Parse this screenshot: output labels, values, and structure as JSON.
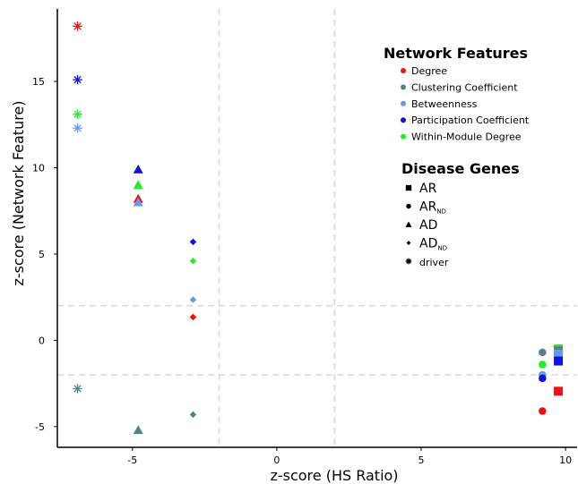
{
  "chart_data": {
    "type": "scatter",
    "xlabel": "z-score (HS Ratio)",
    "ylabel": "z-score (Network Feature)",
    "xlim": [
      -7.6,
      10.4
    ],
    "ylim": [
      -6.2,
      19.2
    ],
    "x_ticks": [
      -5,
      0,
      5,
      10
    ],
    "y_ticks": [
      -5,
      0,
      5,
      10,
      15
    ],
    "reference_lines": {
      "vertical": [
        -2,
        2
      ],
      "horizontal": [
        -2,
        2
      ],
      "style": "dashed light gray"
    },
    "grid": false,
    "legend_placement": "top-right",
    "feature_legend": {
      "title": "Network Features",
      "items": [
        {
          "key": "degree",
          "label": "Degree",
          "color": "#ee1111"
        },
        {
          "key": "clustering",
          "label": "Clustering Coefficient",
          "color": "#5b7f86"
        },
        {
          "key": "betweenness",
          "label": "Betweenness",
          "color": "#6699ee"
        },
        {
          "key": "participation",
          "label": "Participation Coefficient",
          "color": "#1111dd"
        },
        {
          "key": "within",
          "label": "Within-Module Degree",
          "color": "#22ee22"
        }
      ]
    },
    "gene_legend": {
      "title": "Disease Genes",
      "items": [
        {
          "key": "AR",
          "label": "AR",
          "sub": "",
          "shape": "square"
        },
        {
          "key": "AR_ND",
          "label": "AR",
          "sub": "ND",
          "shape": "circle"
        },
        {
          "key": "AD",
          "label": "AD",
          "sub": "",
          "shape": "triangle"
        },
        {
          "key": "AD_ND",
          "label": "AD",
          "sub": "ND",
          "shape": "diamond"
        },
        {
          "key": "driver",
          "label": "driver",
          "sub": "",
          "shape": "asterisk"
        }
      ]
    },
    "series": [
      {
        "gene": "driver",
        "feature": "degree",
        "x": -6.9,
        "y": 18.2
      },
      {
        "gene": "driver",
        "feature": "participation",
        "x": -6.9,
        "y": 15.1
      },
      {
        "gene": "driver",
        "feature": "within",
        "x": -6.9,
        "y": 13.1
      },
      {
        "gene": "driver",
        "feature": "betweenness",
        "x": -6.9,
        "y": 12.3
      },
      {
        "gene": "driver",
        "feature": "clustering",
        "x": -6.9,
        "y": -2.8
      },
      {
        "gene": "AD",
        "feature": "participation",
        "x": -4.8,
        "y": 9.9
      },
      {
        "gene": "AD",
        "feature": "within",
        "x": -4.8,
        "y": 9.0
      },
      {
        "gene": "AD",
        "feature": "degree",
        "x": -4.8,
        "y": 8.2
      },
      {
        "gene": "AD",
        "feature": "betweenness",
        "x": -4.8,
        "y": 8.0
      },
      {
        "gene": "AD",
        "feature": "clustering",
        "x": -4.8,
        "y": -5.2
      },
      {
        "gene": "AD_ND",
        "feature": "participation",
        "x": -2.9,
        "y": 5.7
      },
      {
        "gene": "AD_ND",
        "feature": "within",
        "x": -2.9,
        "y": 4.6
      },
      {
        "gene": "AD_ND",
        "feature": "betweenness",
        "x": -2.9,
        "y": 2.35
      },
      {
        "gene": "AD_ND",
        "feature": "degree",
        "x": -2.9,
        "y": 1.35
      },
      {
        "gene": "AD_ND",
        "feature": "clustering",
        "x": -2.9,
        "y": -4.3
      },
      {
        "gene": "AR_ND",
        "feature": "clustering",
        "x": 9.2,
        "y": -0.7
      },
      {
        "gene": "AR_ND",
        "feature": "within",
        "x": 9.2,
        "y": -1.4
      },
      {
        "gene": "AR_ND",
        "feature": "betweenness",
        "x": 9.2,
        "y": -2.0
      },
      {
        "gene": "AR_ND",
        "feature": "participation",
        "x": 9.2,
        "y": -2.2
      },
      {
        "gene": "AR_ND",
        "feature": "degree",
        "x": 9.2,
        "y": -4.1
      },
      {
        "gene": "AR",
        "feature": "within",
        "x": 9.75,
        "y": -0.5
      },
      {
        "gene": "AR",
        "feature": "clustering",
        "x": 9.75,
        "y": -0.6
      },
      {
        "gene": "AR",
        "feature": "betweenness",
        "x": 9.75,
        "y": -0.8
      },
      {
        "gene": "AR",
        "feature": "participation",
        "x": 9.75,
        "y": -1.2
      },
      {
        "gene": "AR",
        "feature": "degree",
        "x": 9.75,
        "y": -2.95
      }
    ]
  }
}
